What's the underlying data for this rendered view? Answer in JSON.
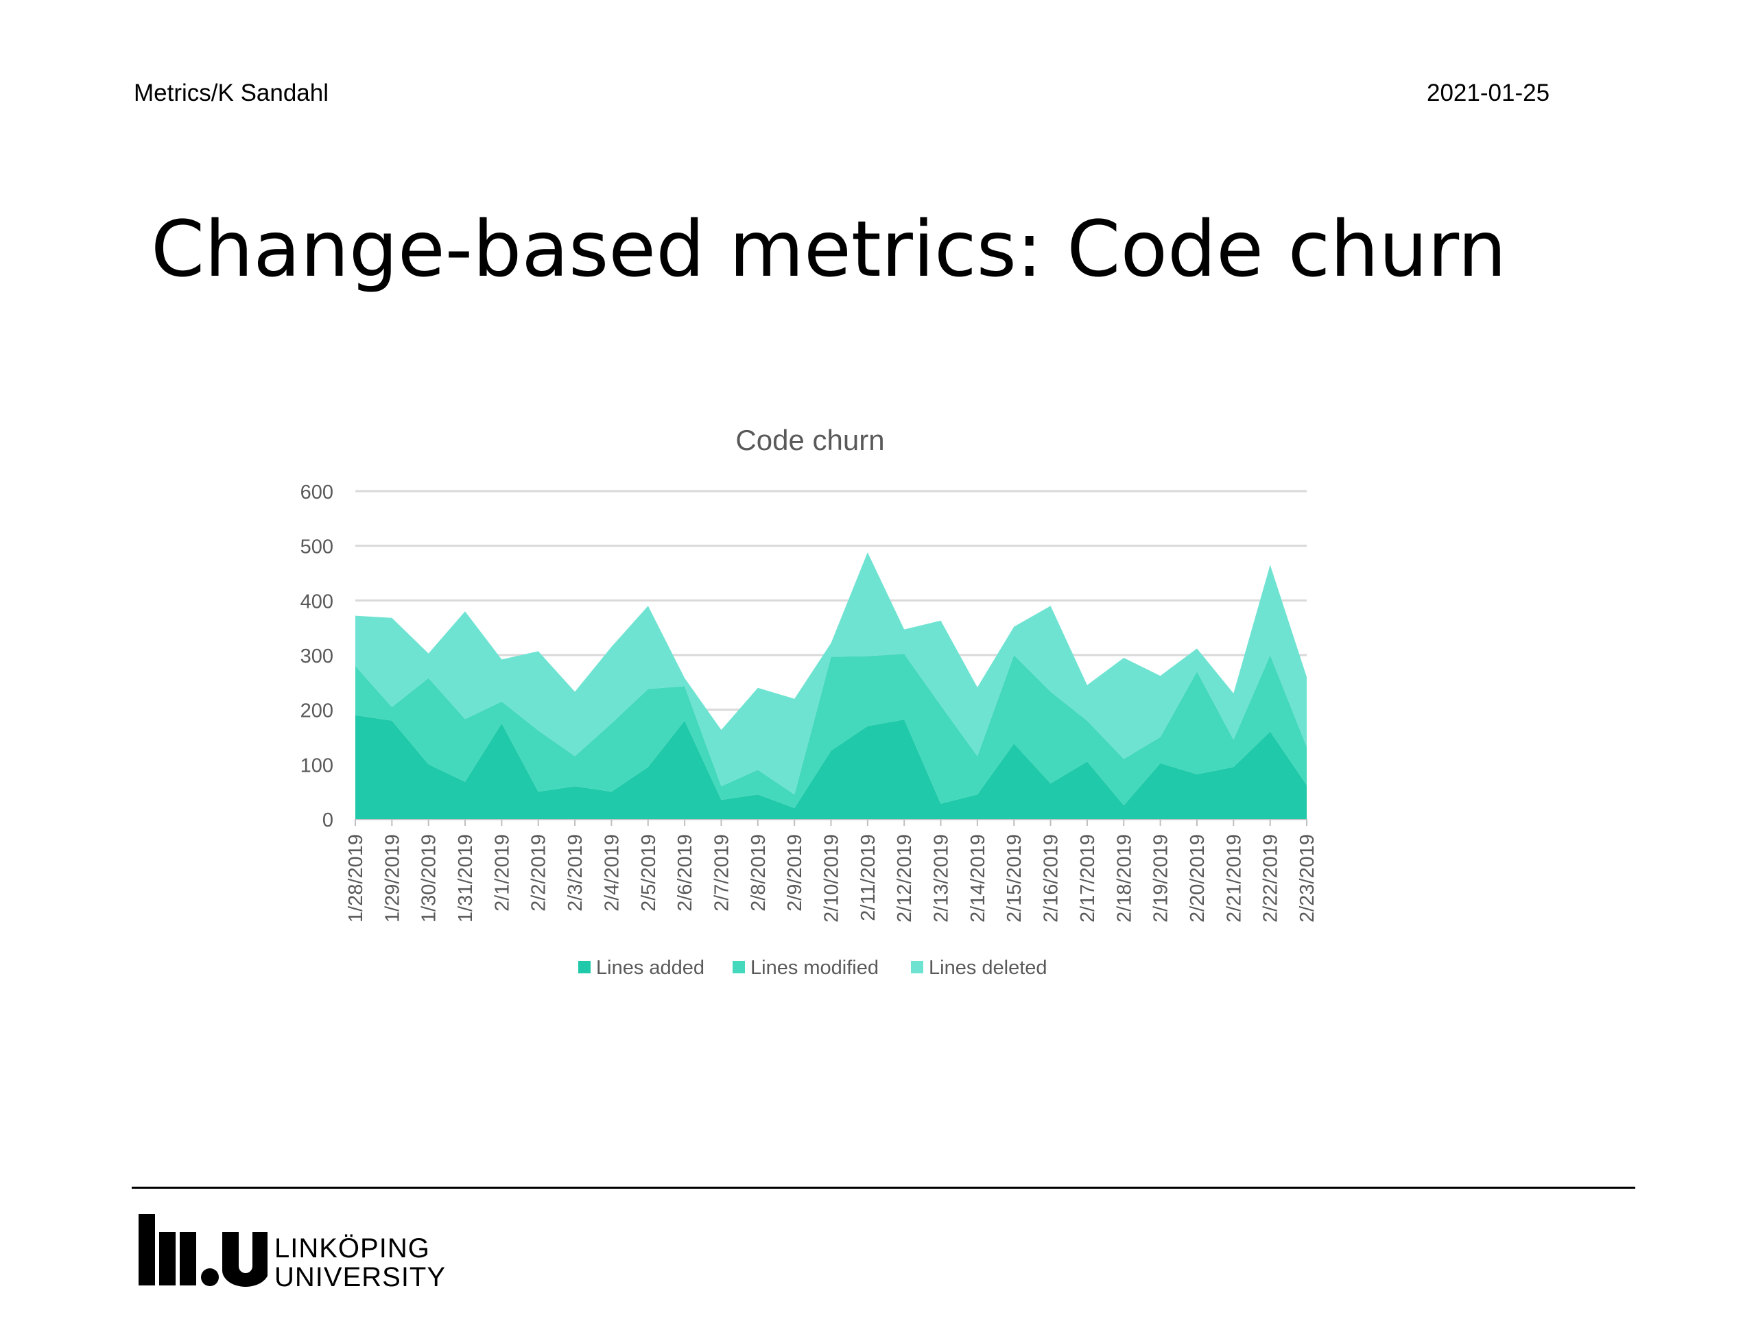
{
  "header": {
    "left": "Metrics/K Sandahl",
    "right": "2021-01-25"
  },
  "slide": {
    "title": "Change-based metrics: Code churn"
  },
  "logo": {
    "mark": "liu",
    "line1": "LINKÖPING",
    "line2": "UNIVERSITY"
  },
  "colors": {
    "added": "#1fc9a9",
    "modified": "#44d9bc",
    "deleted": "#6fe3d2",
    "grid": "#d9d9d9",
    "text": "#595959"
  },
  "chart_data": {
    "type": "area",
    "stacked": true,
    "title": "Code churn",
    "xlabel": "",
    "ylabel": "",
    "ylim": [
      0,
      600
    ],
    "yticks": [
      0,
      100,
      200,
      300,
      400,
      500,
      600
    ],
    "grid": true,
    "legend": "bottom",
    "categories": [
      "1/28/2019",
      "1/29/2019",
      "1/30/2019",
      "1/31/2019",
      "2/1/2019",
      "2/2/2019",
      "2/3/2019",
      "2/4/2019",
      "2/5/2019",
      "2/6/2019",
      "2/7/2019",
      "2/8/2019",
      "2/9/2019",
      "2/10/2019",
      "2/11/2019",
      "2/12/2019",
      "2/13/2019",
      "2/14/2019",
      "2/15/2019",
      "2/16/2019",
      "2/17/2019",
      "2/18/2019",
      "2/19/2019",
      "2/20/2019",
      "2/21/2019",
      "2/22/2019",
      "2/23/2019"
    ],
    "series": [
      {
        "name": "Lines added",
        "values": [
          190,
          180,
          100,
          68,
          175,
          50,
          60,
          50,
          95,
          180,
          35,
          45,
          20,
          125,
          170,
          182,
          28,
          45,
          138,
          65,
          105,
          25,
          102,
          82,
          95,
          160,
          62
        ]
      },
      {
        "name": "Lines modified",
        "values": [
          90,
          25,
          158,
          115,
          40,
          112,
          55,
          125,
          143,
          63,
          25,
          45,
          25,
          172,
          128,
          120,
          180,
          70,
          162,
          168,
          75,
          85,
          48,
          188,
          50,
          140,
          70
        ]
      },
      {
        "name": "Lines deleted",
        "values": [
          92,
          163,
          45,
          197,
          77,
          145,
          118,
          140,
          152,
          15,
          103,
          150,
          175,
          25,
          190,
          45,
          155,
          126,
          52,
          157,
          65,
          185,
          112,
          42,
          85,
          165,
          128
        ]
      }
    ]
  }
}
